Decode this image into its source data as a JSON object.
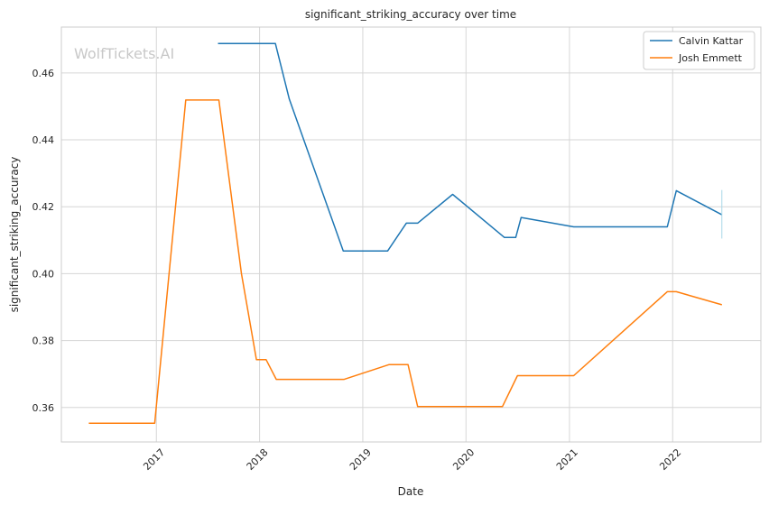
{
  "chart_data": {
    "type": "line",
    "title": "significant_striking_accuracy over time",
    "xlabel": "Date",
    "ylabel": "significant_striking_accuracy",
    "watermark": "WolfTickets.AI",
    "legend_position": "top-right",
    "grid": true,
    "x_ticks": [
      "2017",
      "2018",
      "2019",
      "2020",
      "2021",
      "2022"
    ],
    "y_ticks": [
      "0.36",
      "0.38",
      "0.40",
      "0.42",
      "0.44",
      "0.46"
    ],
    "xlim": [
      "2016-01-31",
      "2022-11-09"
    ],
    "ylim": [
      0.3497,
      0.4737
    ],
    "series": [
      {
        "name": "Calvin Kattar",
        "color": "#1f77b4",
        "points": [
          [
            "2017-08-07",
            0.4688
          ],
          [
            "2018-02-26",
            0.4688
          ],
          [
            "2018-04-16",
            0.4522
          ],
          [
            "2018-10-24",
            0.4068
          ],
          [
            "2019-03-30",
            0.4068
          ],
          [
            "2019-06-04",
            0.4151
          ],
          [
            "2019-07-14",
            0.4151
          ],
          [
            "2019-11-15",
            0.4237
          ],
          [
            "2020-05-16",
            0.4108
          ],
          [
            "2020-06-25",
            0.4108
          ],
          [
            "2020-07-14",
            0.4168
          ],
          [
            "2021-01-16",
            0.414
          ],
          [
            "2021-12-13",
            0.414
          ],
          [
            "2022-01-14",
            0.4248
          ],
          [
            "2022-06-24",
            0.4176
          ]
        ]
      },
      {
        "name": "Josh Emmett",
        "color": "#ff7f0e",
        "points": [
          [
            "2016-05-07",
            0.3553
          ],
          [
            "2016-12-26",
            0.3553
          ],
          [
            "2017-04-15",
            0.4519
          ],
          [
            "2017-08-10",
            0.4519
          ],
          [
            "2017-10-29",
            0.4
          ],
          [
            "2017-12-21",
            0.3743
          ],
          [
            "2018-01-24",
            0.3743
          ],
          [
            "2018-03-01",
            0.3684
          ],
          [
            "2018-10-27",
            0.3684
          ],
          [
            "2019-04-03",
            0.3728
          ],
          [
            "2019-06-10",
            0.3728
          ],
          [
            "2019-07-14",
            0.3603
          ],
          [
            "2020-05-09",
            0.3603
          ],
          [
            "2020-07-01",
            0.3695
          ],
          [
            "2021-01-16",
            0.3695
          ],
          [
            "2021-12-13",
            0.3946
          ],
          [
            "2022-01-14",
            0.3946
          ],
          [
            "2022-06-24",
            0.3907
          ]
        ]
      }
    ],
    "annotation": {
      "date": "2022-06-24",
      "y_low": 0.4105,
      "y_high": 0.425,
      "color": "#a8d8e8"
    }
  }
}
